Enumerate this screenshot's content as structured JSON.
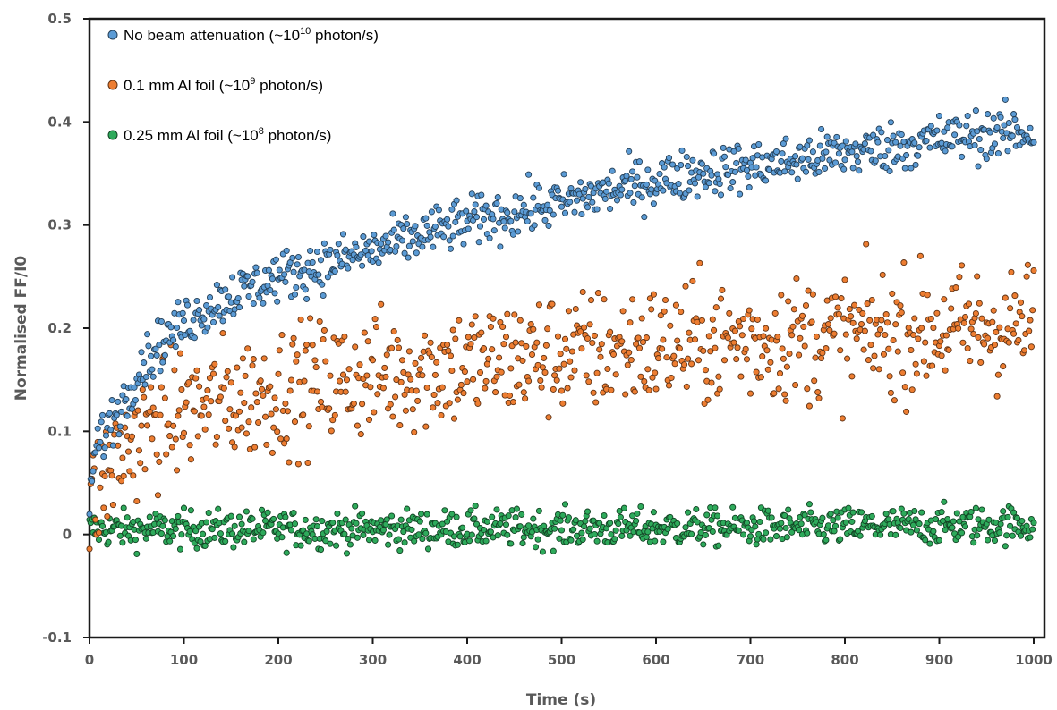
{
  "chart_data": {
    "type": "scatter",
    "xlabel": "Time (s)",
    "ylabel": "Normalised FF/I0",
    "xlim": [
      0,
      1000
    ],
    "ylim": [
      -0.1,
      0.5
    ],
    "x_ticks": [
      "0",
      "100",
      "200",
      "300",
      "400",
      "500",
      "600",
      "700",
      "800",
      "900",
      "1000"
    ],
    "y_ticks": [
      "-0.1",
      "0",
      "0.1",
      "0.2",
      "0.3",
      "0.4",
      "0.5"
    ],
    "legend_position": "top-left",
    "grid": false,
    "series": [
      {
        "name": "No beam attenuation (~10^10 photon/s)",
        "label_main": "No beam attenuation (~10",
        "label_sup": "10",
        "label_end": " photon/s)",
        "color": "#5b9bd5",
        "x": [
          0,
          5,
          10,
          20,
          30,
          40,
          50,
          75,
          100,
          125,
          150,
          200,
          250,
          300,
          350,
          400,
          450,
          500,
          550,
          600,
          650,
          700,
          750,
          800,
          850,
          900,
          950,
          1000
        ],
        "y": [
          0.04,
          0.07,
          0.09,
          0.105,
          0.12,
          0.135,
          0.158,
          0.185,
          0.205,
          0.22,
          0.232,
          0.25,
          0.262,
          0.275,
          0.29,
          0.303,
          0.312,
          0.322,
          0.333,
          0.343,
          0.352,
          0.357,
          0.363,
          0.37,
          0.376,
          0.383,
          0.388,
          0.39
        ],
        "noise": 0.012
      },
      {
        "name": "0.1 mm Al foil (~10^9 photon/s)",
        "label_main": "0.1 mm Al foil (~10",
        "label_sup": "9",
        "label_end": " photon/s)",
        "color": "#ed7d31",
        "x": [
          0,
          10,
          25,
          50,
          75,
          100,
          150,
          200,
          250,
          300,
          400,
          500,
          600,
          700,
          800,
          900,
          1000
        ],
        "y": [
          0.025,
          0.045,
          0.07,
          0.095,
          0.11,
          0.12,
          0.13,
          0.14,
          0.148,
          0.155,
          0.165,
          0.175,
          0.182,
          0.188,
          0.192,
          0.198,
          0.202
        ],
        "noise": 0.03
      },
      {
        "name": "0.25 mm Al foil (~10^8 photon/s)",
        "label_main": "0.25 mm Al foil (~10",
        "label_sup": "8",
        "label_end": " photon/s)",
        "color": "#2eaa5b",
        "x": [
          0,
          250,
          500,
          750,
          1000
        ],
        "y": [
          0.005,
          0.005,
          0.006,
          0.007,
          0.01
        ],
        "noise": 0.009
      }
    ]
  }
}
